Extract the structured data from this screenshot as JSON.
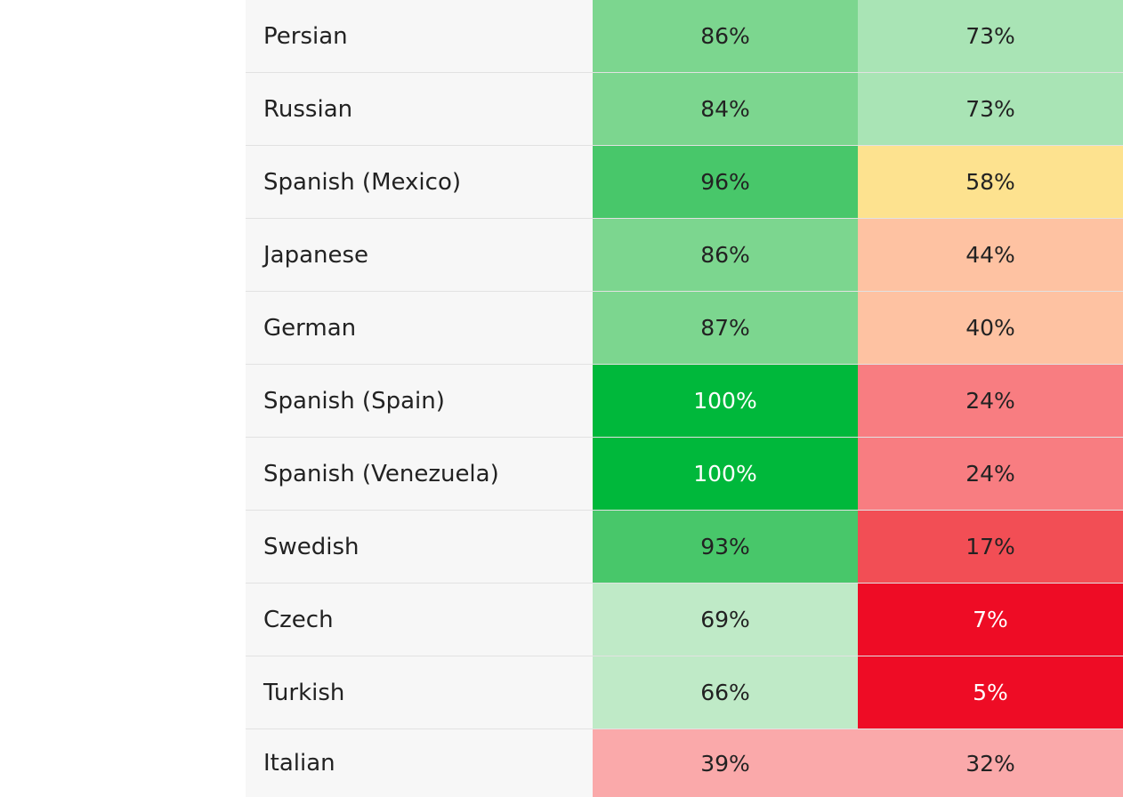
{
  "table": {
    "rows": [
      {
        "language": "Persian",
        "a": "86%",
        "b": "73%",
        "a_color": "#7cd68f",
        "b_color": "#a9e4b5",
        "a_light": false,
        "b_light": false
      },
      {
        "language": "Russian",
        "a": "84%",
        "b": "73%",
        "a_color": "#7cd68f",
        "b_color": "#a9e4b5",
        "a_light": false,
        "b_light": false
      },
      {
        "language": "Spanish (Mexico)",
        "a": "96%",
        "b": "58%",
        "a_color": "#48c76a",
        "b_color": "#fde28f",
        "a_light": false,
        "b_light": false
      },
      {
        "language": "Japanese",
        "a": "86%",
        "b": "44%",
        "a_color": "#7cd68f",
        "b_color": "#fec2a2",
        "a_light": false,
        "b_light": false
      },
      {
        "language": "German",
        "a": "87%",
        "b": "40%",
        "a_color": "#7cd68f",
        "b_color": "#fec2a2",
        "a_light": false,
        "b_light": false
      },
      {
        "language": "Spanish (Spain)",
        "a": "100%",
        "b": "24%",
        "a_color": "#00b83b",
        "b_color": "#f87d81",
        "a_light": true,
        "b_light": false
      },
      {
        "language": "Spanish (Venezuela)",
        "a": "100%",
        "b": "24%",
        "a_color": "#00b83b",
        "b_color": "#f87d81",
        "a_light": true,
        "b_light": false
      },
      {
        "language": "Swedish",
        "a": "93%",
        "b": "17%",
        "a_color": "#48c76a",
        "b_color": "#f24e55",
        "a_light": false,
        "b_light": false
      },
      {
        "language": "Czech",
        "a": "69%",
        "b": "7%",
        "a_color": "#bfeac7",
        "b_color": "#ee0c25",
        "a_light": false,
        "b_light": true
      },
      {
        "language": "Turkish",
        "a": "66%",
        "b": "5%",
        "a_color": "#bfeac7",
        "b_color": "#ee0c25",
        "a_light": false,
        "b_light": true
      },
      {
        "language": "Italian",
        "a": "39%",
        "b": "32%",
        "a_color": "#faa9aa",
        "b_color": "#faa9aa",
        "a_light": false,
        "b_light": false
      }
    ]
  }
}
